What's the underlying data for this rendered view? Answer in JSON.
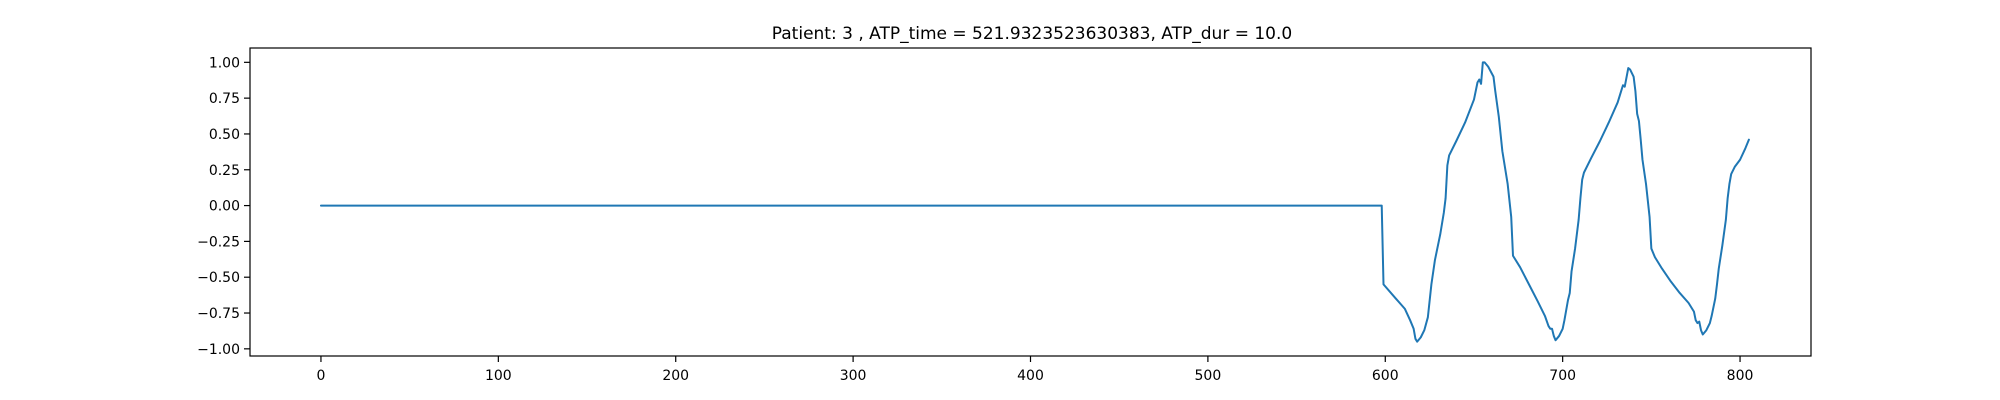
{
  "chart_data": {
    "type": "line",
    "title": "Patient: 3 , ATP_time = 521.9323523630383, ATP_dur = 10.0",
    "xlabel": "",
    "ylabel": "",
    "xlim": [
      -40,
      840
    ],
    "ylim": [
      -1.05,
      1.1
    ],
    "xticks": [
      0,
      100,
      200,
      300,
      400,
      500,
      600,
      700,
      800
    ],
    "xtick_labels": [
      "0",
      "100",
      "200",
      "300",
      "400",
      "500",
      "600",
      "700",
      "800"
    ],
    "yticks": [
      1.0,
      0.75,
      0.5,
      0.25,
      0.0,
      -0.25,
      -0.5,
      -0.75,
      -1.0
    ],
    "ytick_labels": [
      "1.00",
      "0.75",
      "0.50",
      "0.25",
      "0.00",
      "−0.25",
      "−0.50",
      "−0.75",
      "−1.00"
    ],
    "grid": false,
    "legend": "none",
    "series": [
      {
        "color": "#1f77b4",
        "points": [
          [
            0,
            0.0
          ],
          [
            598,
            0.0
          ],
          [
            599,
            -0.55
          ],
          [
            606,
            -0.65
          ],
          [
            611,
            -0.72
          ],
          [
            614,
            -0.8
          ],
          [
            616,
            -0.86
          ],
          [
            617,
            -0.93
          ],
          [
            618,
            -0.95
          ],
          [
            620,
            -0.92
          ],
          [
            622,
            -0.87
          ],
          [
            624,
            -0.78
          ],
          [
            626,
            -0.55
          ],
          [
            628,
            -0.38
          ],
          [
            631,
            -0.2
          ],
          [
            633,
            -0.05
          ],
          [
            634,
            0.05
          ],
          [
            635,
            0.28
          ],
          [
            636,
            0.35
          ],
          [
            640,
            0.45
          ],
          [
            645,
            0.58
          ],
          [
            650,
            0.74
          ],
          [
            652,
            0.86
          ],
          [
            653,
            0.88
          ],
          [
            654,
            0.85
          ],
          [
            655,
            1.0
          ],
          [
            656,
            1.0
          ],
          [
            658,
            0.97
          ],
          [
            661,
            0.9
          ],
          [
            662,
            0.8
          ],
          [
            664,
            0.62
          ],
          [
            666,
            0.38
          ],
          [
            669,
            0.15
          ],
          [
            671,
            -0.08
          ],
          [
            672,
            -0.35
          ],
          [
            676,
            -0.43
          ],
          [
            681,
            -0.55
          ],
          [
            686,
            -0.67
          ],
          [
            690,
            -0.77
          ],
          [
            692,
            -0.84
          ],
          [
            693,
            -0.86
          ],
          [
            694,
            -0.86
          ],
          [
            695,
            -0.91
          ],
          [
            696,
            -0.94
          ],
          [
            698,
            -0.91
          ],
          [
            700,
            -0.86
          ],
          [
            701,
            -0.8
          ],
          [
            703,
            -0.66
          ],
          [
            704,
            -0.61
          ],
          [
            705,
            -0.46
          ],
          [
            707,
            -0.3
          ],
          [
            709,
            -0.1
          ],
          [
            710,
            0.05
          ],
          [
            711,
            0.18
          ],
          [
            712,
            0.23
          ],
          [
            716,
            0.33
          ],
          [
            721,
            0.45
          ],
          [
            726,
            0.58
          ],
          [
            731,
            0.72
          ],
          [
            733,
            0.8
          ],
          [
            734,
            0.84
          ],
          [
            735,
            0.83
          ],
          [
            737,
            0.96
          ],
          [
            738,
            0.95
          ],
          [
            740,
            0.9
          ],
          [
            741,
            0.8
          ],
          [
            742,
            0.64
          ],
          [
            743,
            0.59
          ],
          [
            744,
            0.46
          ],
          [
            745,
            0.32
          ],
          [
            747,
            0.15
          ],
          [
            749,
            -0.08
          ],
          [
            750,
            -0.3
          ],
          [
            752,
            -0.36
          ],
          [
            756,
            -0.44
          ],
          [
            761,
            -0.53
          ],
          [
            766,
            -0.61
          ],
          [
            771,
            -0.68
          ],
          [
            774,
            -0.74
          ],
          [
            775,
            -0.8
          ],
          [
            776,
            -0.82
          ],
          [
            777,
            -0.81
          ],
          [
            778,
            -0.87
          ],
          [
            779,
            -0.9
          ],
          [
            781,
            -0.87
          ],
          [
            783,
            -0.82
          ],
          [
            784,
            -0.77
          ],
          [
            786,
            -0.65
          ],
          [
            787,
            -0.55
          ],
          [
            788,
            -0.44
          ],
          [
            790,
            -0.28
          ],
          [
            792,
            -0.1
          ],
          [
            793,
            0.05
          ],
          [
            794,
            0.15
          ],
          [
            795,
            0.22
          ],
          [
            797,
            0.27
          ],
          [
            800,
            0.32
          ],
          [
            803,
            0.4
          ],
          [
            805,
            0.46
          ]
        ]
      }
    ]
  }
}
